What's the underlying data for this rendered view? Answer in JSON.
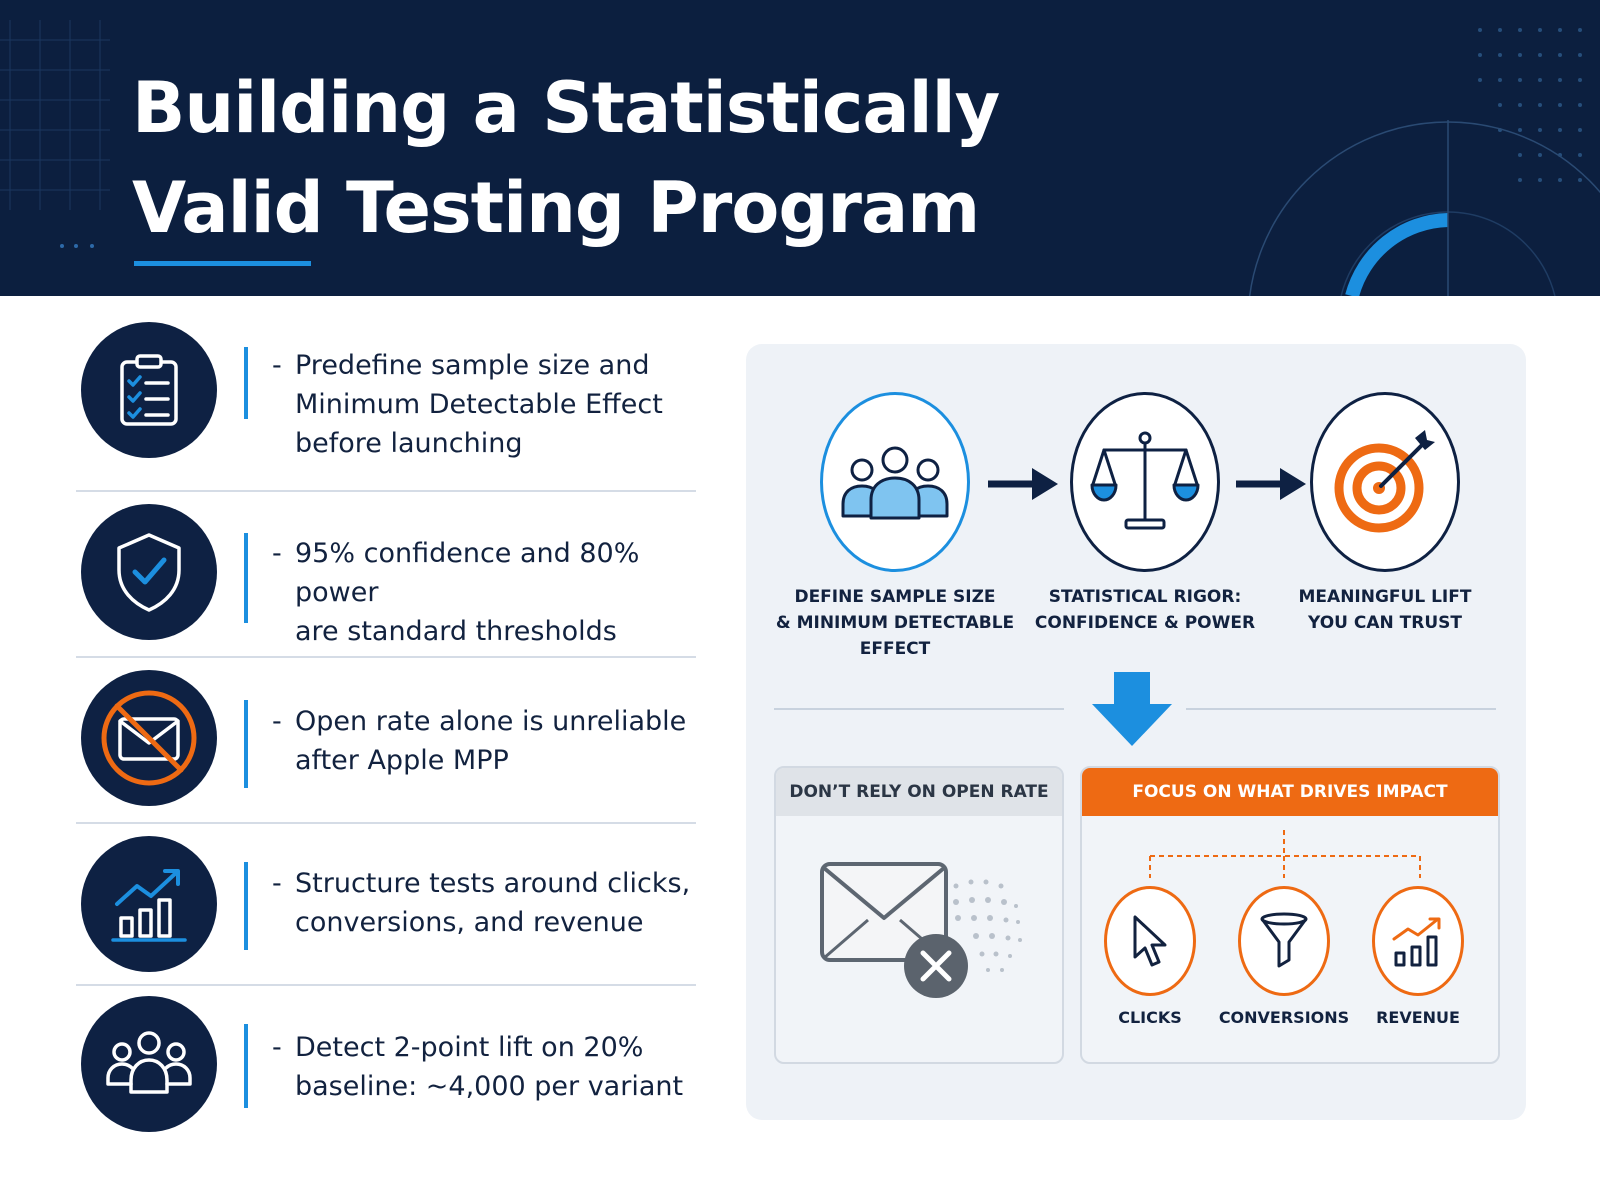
{
  "header": {
    "title_line1": "Building a Statistically",
    "title_line2": "Valid Testing Program"
  },
  "checklist": [
    {
      "icon": "clipboard-checklist-icon",
      "dash": "-",
      "text": "Predefine sample size and\nMinimum Detectable Effect\nbefore launching"
    },
    {
      "icon": "shield-check-icon",
      "dash": "-",
      "text": "95% confidence and 80% power\nare standard thresholds"
    },
    {
      "icon": "email-blocked-icon",
      "dash": "-",
      "text": "Open rate alone is unreliable\nafter Apple MPP"
    },
    {
      "icon": "bar-chart-trend-icon",
      "dash": "-",
      "text": "Structure tests around clicks,\nconversions, and revenue"
    },
    {
      "icon": "people-group-icon",
      "dash": "-",
      "text": "Detect 2-point lift on 20%\nbaseline: ~4,000 per variant"
    }
  ],
  "flow": {
    "steps": [
      {
        "icon": "people-group-icon",
        "label": "DEFINE SAMPLE SIZE\n& MINIMUM DETECTABLE\nEFFECT"
      },
      {
        "icon": "balance-scale-icon",
        "label": "STATISTICAL RIGOR:\nCONFIDENCE & POWER"
      },
      {
        "icon": "target-arrow-icon",
        "label": "MEANINGFUL LIFT\nYOU CAN TRUST"
      }
    ]
  },
  "dont_box": {
    "title": "DON’T RELY ON OPEN RATE",
    "icon": "email-rejected-icon"
  },
  "focus_box": {
    "title": "FOCUS ON WHAT DRIVES IMPACT",
    "items": [
      {
        "icon": "cursor-click-icon",
        "label": "CLICKS"
      },
      {
        "icon": "funnel-icon",
        "label": "CONVERSIONS"
      },
      {
        "icon": "revenue-chart-icon",
        "label": "REVENUE"
      }
    ]
  },
  "colors": {
    "navy": "#0c1f3f",
    "accent_blue": "#1c8fdf",
    "accent_orange": "#ee6a13",
    "panel_bg": "#eef2f7"
  }
}
